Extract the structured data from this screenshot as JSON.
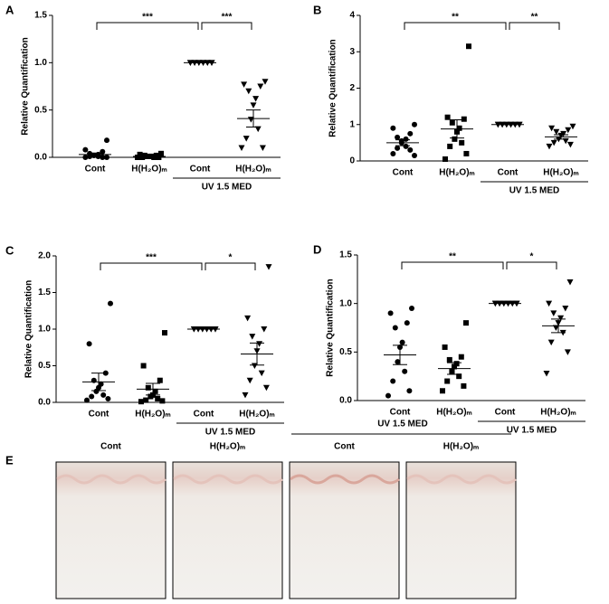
{
  "chart_data": [
    {
      "type": "strip",
      "panel": "A",
      "y_label": "Relative Quantification",
      "categories": [
        "Cont",
        "H(H₂O)ₘ",
        "Cont",
        "H(H₂O)ₘ"
      ],
      "group_label": "UV 1.5 MED",
      "significance": [
        "***",
        "***"
      ],
      "ylim": [
        0,
        1.5
      ],
      "yticks": [
        {
          "value": 0,
          "label": "0.0"
        },
        0.5,
        {
          "value": 1,
          "label": "1.0"
        },
        1.5
      ],
      "markers": [
        "circle",
        "square",
        "triangle-down",
        "triangle-down"
      ],
      "series": [
        {
          "values": [
            0.18,
            0.08,
            0.06,
            0.04,
            0.03,
            0.02,
            0.02,
            0.01,
            0.01,
            0,
            0,
            0
          ],
          "mean": 0.03,
          "sem": 0.015
        },
        {
          "values": [
            0.04,
            0.03,
            0.02,
            0.02,
            0.01,
            0.01,
            0.01,
            0,
            0,
            0,
            0
          ],
          "mean": 0.01,
          "sem": 0.005
        },
        {
          "values": [
            1,
            1,
            1,
            1,
            1,
            1,
            1,
            1,
            1,
            1,
            1,
            1
          ],
          "mean": 1,
          "sem": 0
        },
        {
          "values": [
            0.8,
            0.77,
            0.75,
            0.7,
            0.62,
            0.55,
            0.4,
            0.3,
            0.2,
            0.1,
            0.1
          ],
          "mean": 0.41,
          "sem": 0.09
        }
      ]
    },
    {
      "type": "strip",
      "panel": "B",
      "y_label": "Relative Quantification",
      "categories": [
        "Cont",
        "H(H₂O)ₘ",
        "Cont",
        "H(H₂O)ₘ"
      ],
      "group_label": "UV 1.5 MED",
      "significance": [
        "**",
        "**"
      ],
      "ylim": [
        0,
        4
      ],
      "yticks": [
        0,
        1,
        2,
        3,
        4
      ],
      "markers": [
        "circle",
        "square",
        "triangle-down",
        "triangle-down"
      ],
      "series": [
        {
          "values": [
            1.0,
            0.9,
            0.75,
            0.65,
            0.6,
            0.55,
            0.5,
            0.4,
            0.35,
            0.3,
            0.2,
            0.15
          ],
          "mean": 0.5,
          "sem": 0.08
        },
        {
          "values": [
            3.15,
            1.2,
            1.15,
            1.05,
            0.9,
            0.8,
            0.6,
            0.5,
            0.4,
            0.2,
            0.05
          ],
          "mean": 0.88,
          "sem": 0.25
        },
        {
          "values": [
            1,
            1,
            1,
            1,
            1,
            1,
            1,
            1,
            1,
            1,
            1,
            1
          ],
          "mean": 1,
          "sem": 0
        },
        {
          "values": [
            0.95,
            0.9,
            0.85,
            0.8,
            0.75,
            0.7,
            0.6,
            0.55,
            0.5,
            0.45,
            0.4
          ],
          "mean": 0.66,
          "sem": 0.06
        }
      ]
    },
    {
      "type": "strip",
      "panel": "C",
      "y_label": "Relative Quantification",
      "categories": [
        "Cont",
        "H(H₂O)ₘ",
        "Cont",
        "H(H₂O)ₘ"
      ],
      "group_label": "UV 1.5 MED",
      "significance": [
        "***",
        "*"
      ],
      "ylim": [
        0,
        2
      ],
      "yticks": [
        {
          "value": 0,
          "label": "0.0"
        },
        0.5,
        {
          "value": 1,
          "label": "1.0"
        },
        1.5,
        {
          "value": 2,
          "label": "2.0"
        }
      ],
      "markers": [
        "circle",
        "square",
        "triangle-down",
        "triangle-down"
      ],
      "series": [
        {
          "values": [
            1.35,
            0.8,
            0.4,
            0.3,
            0.25,
            0.2,
            0.15,
            0.1,
            0.08,
            0.05,
            0.03
          ],
          "mean": 0.28,
          "sem": 0.12
        },
        {
          "values": [
            0.95,
            0.5,
            0.3,
            0.2,
            0.15,
            0.1,
            0.08,
            0.05,
            0.03,
            0.02,
            0.01
          ],
          "mean": 0.18,
          "sem": 0.08
        },
        {
          "values": [
            1,
            1,
            1,
            1,
            1,
            1,
            1,
            1,
            1,
            1,
            1,
            1
          ],
          "mean": 1,
          "sem": 0
        },
        {
          "values": [
            1.85,
            1.15,
            1.0,
            0.9,
            0.8,
            0.7,
            0.5,
            0.4,
            0.3,
            0.2,
            0.1
          ],
          "mean": 0.66,
          "sem": 0.15
        }
      ]
    },
    {
      "type": "strip",
      "panel": "D",
      "y_label": "Relative Quantification",
      "categories": [
        "Cont",
        "H(H₂O)ₘ",
        "Cont",
        "H(H₂O)ₘ"
      ],
      "group_label": "UV 1.5 MED",
      "significance": [
        "**",
        "*"
      ],
      "ylim": [
        0,
        1.5
      ],
      "yticks": [
        {
          "value": 0,
          "label": "0.0"
        },
        0.5,
        {
          "value": 1,
          "label": "1.0"
        },
        1.5
      ],
      "markers": [
        "circle",
        "square",
        "triangle-down",
        "triangle-down"
      ],
      "series": [
        {
          "values": [
            0.95,
            0.9,
            0.8,
            0.75,
            0.6,
            0.55,
            0.4,
            0.3,
            0.2,
            0.1,
            0.05
          ],
          "mean": 0.47,
          "sem": 0.1
        },
        {
          "values": [
            0.8,
            0.55,
            0.45,
            0.42,
            0.38,
            0.35,
            0.3,
            0.25,
            0.2,
            0.15,
            0.1
          ],
          "mean": 0.33,
          "sem": 0.06
        },
        {
          "values": [
            1,
            1,
            1,
            1,
            1,
            1,
            1,
            1,
            1,
            1,
            1,
            1
          ],
          "mean": 1,
          "sem": 0
        },
        {
          "values": [
            1.22,
            1.0,
            0.95,
            0.9,
            0.85,
            0.8,
            0.75,
            0.7,
            0.6,
            0.5,
            0.28
          ],
          "mean": 0.77,
          "sem": 0.07
        }
      ]
    }
  ],
  "image_panel": {
    "panel": "E",
    "group_label": "UV 1.5 MED",
    "labels": [
      "Cont",
      "H(H₂O)ₘ",
      "Cont",
      "H(H₂O)ₘ"
    ]
  }
}
